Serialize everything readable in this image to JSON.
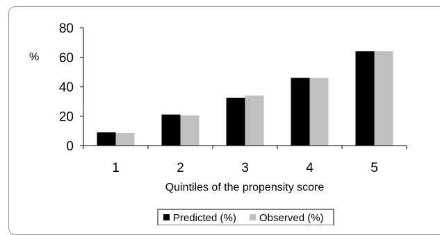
{
  "chart_data": {
    "type": "bar",
    "title": "",
    "ylabel": "%",
    "xlabel": "Quintiles of the propensity score",
    "categories": [
      "1",
      "2",
      "3",
      "4",
      "5"
    ],
    "ylim": [
      0,
      80
    ],
    "yticks": [
      0,
      20,
      40,
      60,
      80
    ],
    "series": [
      {
        "name": "Predicted (%)",
        "color": "#000000",
        "values": [
          9,
          21,
          32.5,
          46,
          64
        ]
      },
      {
        "name": "Observed (%)",
        "color": "#c0c0c0",
        "values": [
          8.5,
          20.5,
          34,
          46,
          64
        ]
      }
    ],
    "legend": "bottom",
    "grid": false
  }
}
